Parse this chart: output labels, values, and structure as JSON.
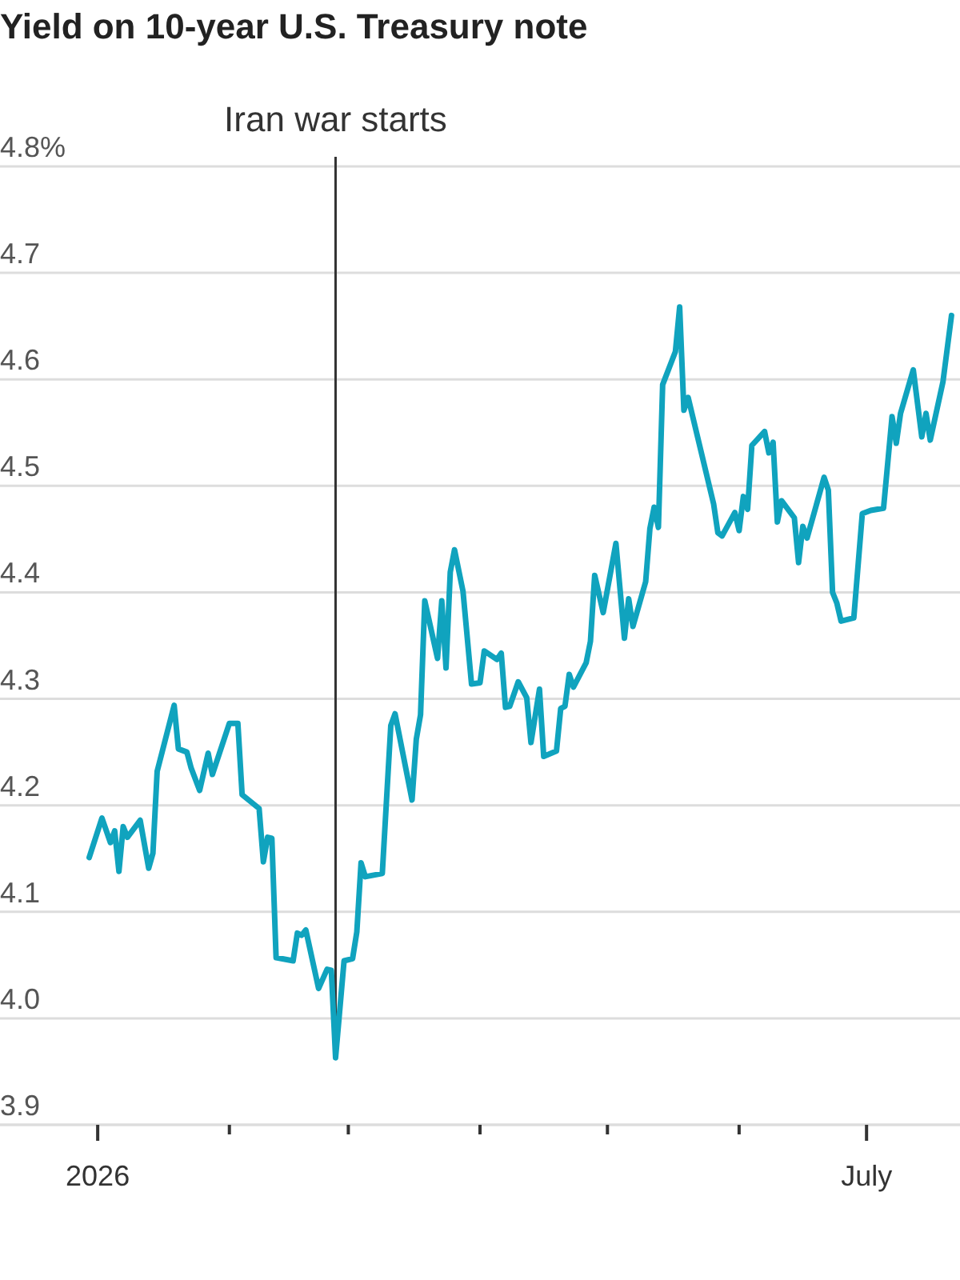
{
  "chart_data": {
    "type": "line",
    "title": "Yield on 10-year U.S. Treasury note",
    "x": [
      "2025-12-30",
      "2026-01-02",
      "2026-01-04",
      "2026-01-05",
      "2026-01-06",
      "2026-01-07",
      "2026-01-08",
      "2026-01-11",
      "2026-01-13",
      "2026-01-14",
      "2026-01-15",
      "2026-01-19",
      "2026-01-20",
      "2026-01-22",
      "2026-01-23",
      "2026-01-25",
      "2026-01-27",
      "2026-01-28",
      "2026-02-01",
      "2026-02-03",
      "2026-02-04",
      "2026-02-08",
      "2026-02-09",
      "2026-02-10",
      "2026-02-11",
      "2026-02-12",
      "2026-02-16",
      "2026-02-17",
      "2026-02-18",
      "2026-02-19",
      "2026-02-22",
      "2026-02-24",
      "2026-02-25",
      "2026-02-26",
      "2026-02-28",
      "2026-03-02",
      "2026-03-03",
      "2026-03-04",
      "2026-03-05",
      "2026-03-09",
      "2026-03-11",
      "2026-03-12",
      "2026-03-16",
      "2026-03-17",
      "2026-03-18",
      "2026-03-19",
      "2026-03-22",
      "2026-03-23",
      "2026-03-24",
      "2026-03-25",
      "2026-03-26",
      "2026-03-28",
      "2026-03-30",
      "2026-04-01",
      "2026-04-02",
      "2026-04-05",
      "2026-04-06",
      "2026-04-07",
      "2026-04-08",
      "2026-04-10",
      "2026-04-12",
      "2026-04-13",
      "2026-04-15",
      "2026-04-16",
      "2026-04-19",
      "2026-04-20",
      "2026-04-21",
      "2026-04-22",
      "2026-04-23",
      "2026-04-26",
      "2026-04-27",
      "2026-04-28",
      "2026-04-30",
      "2026-05-03",
      "2026-05-05",
      "2026-05-06",
      "2026-05-07",
      "2026-05-10",
      "2026-05-11",
      "2026-05-12",
      "2026-05-13",
      "2026-05-14",
      "2026-05-17",
      "2026-05-18",
      "2026-05-19",
      "2026-05-20",
      "2026-05-26",
      "2026-05-27",
      "2026-05-28",
      "2026-05-31",
      "2026-06-01",
      "2026-06-02",
      "2026-06-03",
      "2026-06-04",
      "2026-06-07",
      "2026-06-08",
      "2026-06-09",
      "2026-06-10",
      "2026-06-11",
      "2026-06-14",
      "2026-06-15",
      "2026-06-16",
      "2026-06-17",
      "2026-06-21",
      "2026-06-22",
      "2026-06-23",
      "2026-06-24",
      "2026-06-25",
      "2026-06-28",
      "2026-06-30",
      "2026-07-02",
      "2026-07-05",
      "2026-07-07",
      "2026-07-08",
      "2026-07-09",
      "2026-07-12",
      "2026-07-14",
      "2026-07-15",
      "2026-07-16",
      "2026-07-19",
      "2026-07-21"
    ],
    "series": [
      {
        "color": "#10a3be",
        "values": [
          4.151,
          4.188,
          4.165,
          4.176,
          4.138,
          4.18,
          4.17,
          4.186,
          4.141,
          4.155,
          4.232,
          4.294,
          4.253,
          4.25,
          4.235,
          4.214,
          4.249,
          4.229,
          4.277,
          4.277,
          4.21,
          4.197,
          4.147,
          4.17,
          4.169,
          4.057,
          4.054,
          4.08,
          4.078,
          4.083,
          4.028,
          4.046,
          4.045,
          3.963,
          4.054,
          4.056,
          4.081,
          4.146,
          4.133,
          4.136,
          4.275,
          4.286,
          4.205,
          4.262,
          4.285,
          4.392,
          4.338,
          4.392,
          4.329,
          4.419,
          4.44,
          4.401,
          4.314,
          4.315,
          4.345,
          4.337,
          4.343,
          4.292,
          4.293,
          4.316,
          4.301,
          4.259,
          4.309,
          4.246,
          4.251,
          4.291,
          4.293,
          4.323,
          4.311,
          4.334,
          4.354,
          4.416,
          4.381,
          4.446,
          4.357,
          4.394,
          4.368,
          4.41,
          4.46,
          4.48,
          4.461,
          4.595,
          4.626,
          4.668,
          4.571,
          4.583,
          4.483,
          4.456,
          4.453,
          4.475,
          4.458,
          4.49,
          4.478,
          4.538,
          4.551,
          4.531,
          4.541,
          4.466,
          4.486,
          4.47,
          4.428,
          4.462,
          4.451,
          4.508,
          4.496,
          4.4,
          4.39,
          4.373,
          4.376,
          4.474,
          4.477,
          4.479,
          4.565,
          4.54,
          4.568,
          4.609,
          4.546,
          4.568,
          4.543,
          4.598,
          4.66
        ]
      }
    ],
    "xlim": [
      "2025-12-09",
      "2026-07-23"
    ],
    "xticks": [
      {
        "value": "2026-01-01",
        "label": "2026"
      },
      {
        "value": "2026-02-01",
        "label": null
      },
      {
        "value": "2026-03-01",
        "label": null
      },
      {
        "value": "2026-04-01",
        "label": null
      },
      {
        "value": "2026-05-01",
        "label": null
      },
      {
        "value": "2026-06-01",
        "label": null
      },
      {
        "value": "2026-07-01",
        "label": "July"
      }
    ],
    "ylim": [
      3.9,
      4.8
    ],
    "yticks": [
      3.9,
      {
        "value": 4.0,
        "label": "4.0"
      },
      4.1,
      4.2,
      4.3,
      4.4,
      4.5,
      4.6,
      4.7,
      {
        "value": 4.8,
        "label": "4.8%"
      }
    ],
    "grid": "y",
    "ref_lines": [
      {
        "axis": "x",
        "value": "2026-02-26",
        "label": "Iran war starts",
        "color": "#333333"
      }
    ]
  }
}
